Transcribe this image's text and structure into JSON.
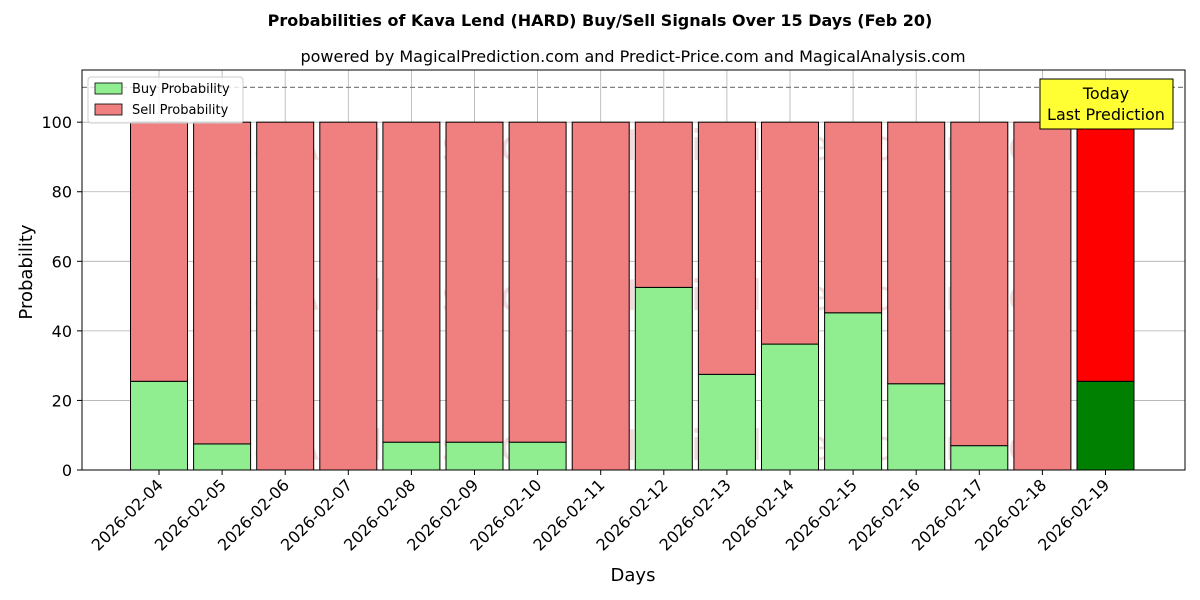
{
  "chart_data": {
    "type": "bar",
    "stacked": true,
    "title": "Probabilities of Kava Lend (HARD) Buy/Sell Signals Over 15 Days (Feb 20)",
    "subtitle": "powered by MagicalPrediction.com and Predict-Price.com and MagicalAnalysis.com",
    "xlabel": "Days",
    "ylabel": "Probability",
    "ylim": [
      0,
      115
    ],
    "yticks": [
      0,
      20,
      40,
      60,
      80,
      100
    ],
    "reference_line": 110,
    "grid": true,
    "legend_position": "top-left",
    "categories": [
      "2026-02-04",
      "2026-02-05",
      "2026-02-06",
      "2026-02-07",
      "2026-02-08",
      "2026-02-09",
      "2026-02-10",
      "2026-02-11",
      "2026-02-12",
      "2026-02-13",
      "2026-02-14",
      "2026-02-15",
      "2026-02-16",
      "2026-02-17",
      "2026-02-18",
      "2026-02-19"
    ],
    "series": [
      {
        "name": "Buy Probability",
        "color": "#90ee90",
        "values": [
          25.5,
          7.5,
          0,
          0,
          8,
          8,
          8,
          0,
          52.5,
          27.5,
          36.2,
          45.2,
          24.8,
          7,
          0,
          25.5
        ]
      },
      {
        "name": "Sell Probability",
        "color": "#f08080",
        "values": [
          74.5,
          92.5,
          100,
          100,
          92,
          92,
          92,
          100,
          47.5,
          72.5,
          63.8,
          54.8,
          75.2,
          93,
          100,
          74.5
        ]
      }
    ],
    "highlight": {
      "index": 15,
      "buy_color": "#008000",
      "sell_color": "#ff0000"
    },
    "annotation": {
      "line1": "Today",
      "line2": "Last Prediction",
      "background": "#ffff33"
    },
    "watermarks": [
      "MagicalAnalysis.com",
      "MagicalPrediction.com"
    ]
  }
}
